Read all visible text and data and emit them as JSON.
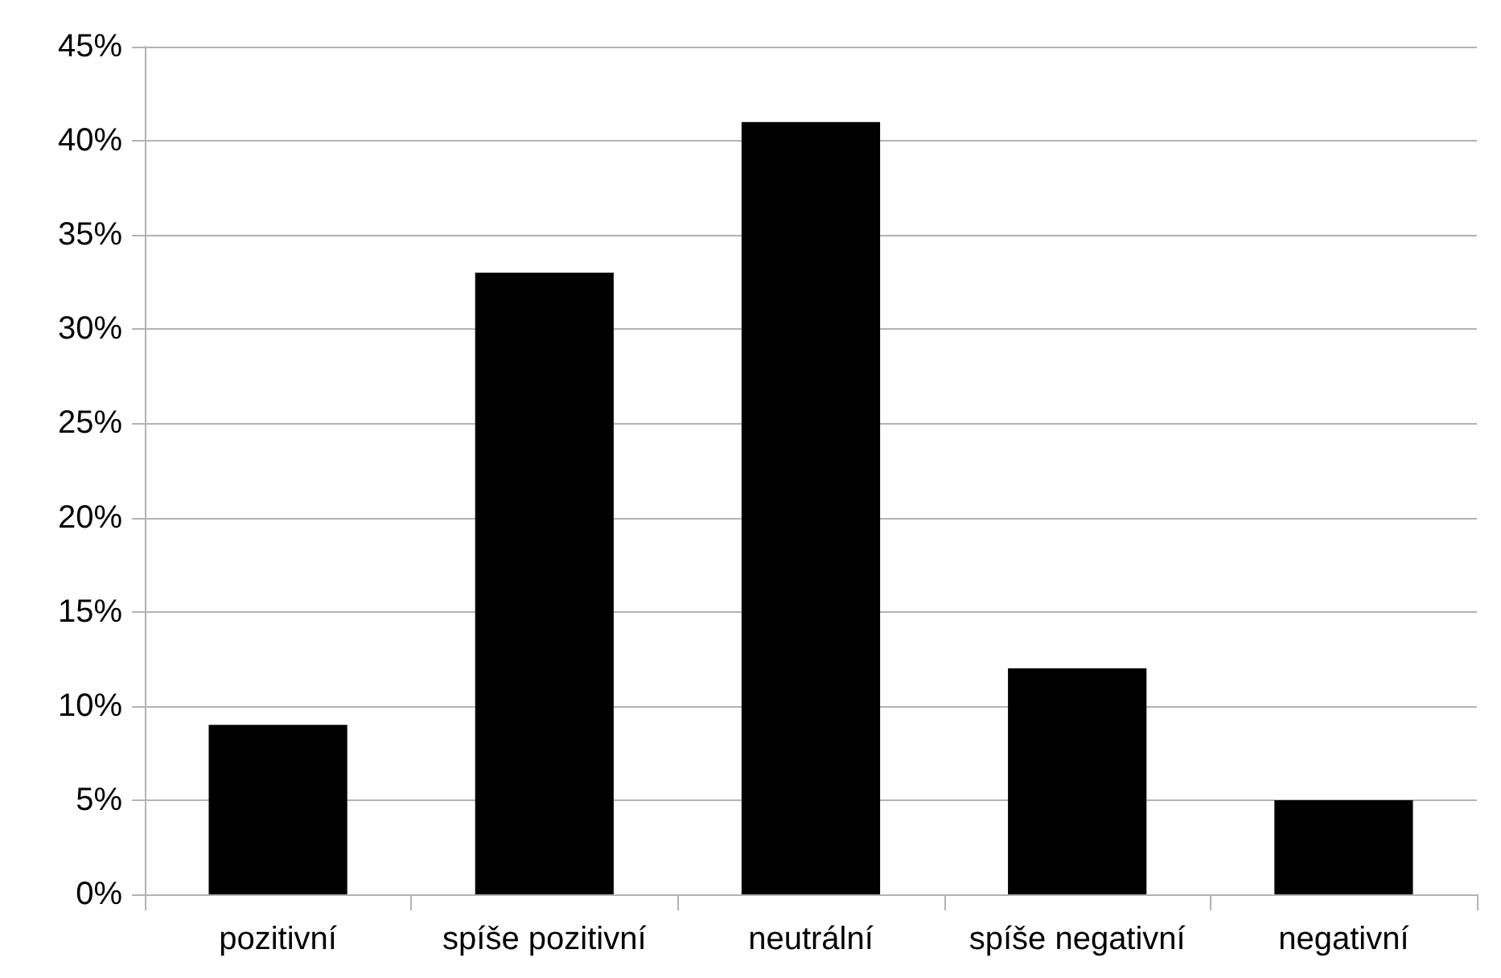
{
  "chart_data": {
    "type": "bar",
    "categories": [
      "pozitivní",
      "spíše pozitivní",
      "neutrální",
      "spíše negativní",
      "negativní"
    ],
    "values": [
      9,
      33,
      41,
      12,
      5
    ],
    "color": "#000000",
    "ylim": [
      0,
      45
    ],
    "yticks": [
      {
        "value": 0,
        "label": "0%"
      },
      {
        "value": 5,
        "label": "5%"
      },
      {
        "value": 10,
        "label": "10%"
      },
      {
        "value": 15,
        "label": "15%"
      },
      {
        "value": 20,
        "label": "20%"
      },
      {
        "value": 25,
        "label": "25%"
      },
      {
        "value": 30,
        "label": "30%"
      },
      {
        "value": 35,
        "label": "35%"
      },
      {
        "value": 40,
        "label": "40%"
      },
      {
        "value": 45,
        "label": "45%"
      }
    ],
    "grid": "y"
  }
}
